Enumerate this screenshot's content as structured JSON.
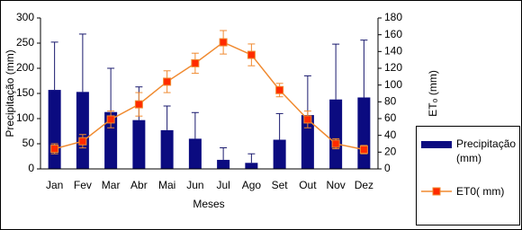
{
  "chart_data": {
    "type": "bar-line-errorbars",
    "x_label": "Meses",
    "y_label": "Precipitação (mm)",
    "y2_label": "ET₀ (mm)",
    "categories": [
      "Jan",
      "Fev",
      "Mar",
      "Abr",
      "Mai",
      "Jun",
      "Jul",
      "Ago",
      "Set",
      "Out",
      "Nov",
      "Dez"
    ],
    "ylim": [
      0,
      300
    ],
    "yticks": [
      0,
      50,
      100,
      150,
      200,
      250,
      300
    ],
    "y2lim": [
      0,
      180
    ],
    "y2ticks": [
      0,
      20,
      40,
      60,
      80,
      100,
      120,
      140,
      160,
      180
    ],
    "series": [
      {
        "name": "Precipitação (mm)",
        "type": "bar",
        "color": "#0b0b80",
        "error_color": "#1a1a6e",
        "values": [
          157,
          153,
          113,
          97,
          77,
          60,
          18,
          12,
          58,
          107,
          138,
          142
        ],
        "errors": [
          95,
          115,
          87,
          66,
          48,
          52,
          24,
          18,
          52,
          78,
          110,
          114
        ]
      },
      {
        "name": "ET0( mm)",
        "type": "line",
        "axis": "y2",
        "color": "#f08a30",
        "marker_color": "#ff2a00",
        "values": [
          24,
          33,
          59,
          77,
          104,
          126,
          151,
          136,
          94,
          59,
          30,
          23
        ],
        "errors": [
          6,
          8,
          10,
          14,
          13,
          12,
          14,
          13,
          8,
          10,
          6,
          5
        ]
      }
    ]
  }
}
